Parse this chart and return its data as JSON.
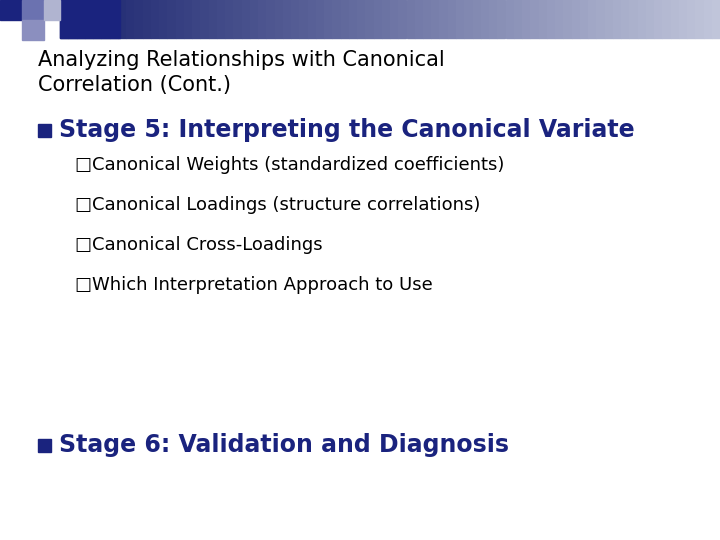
{
  "title_line1": "Analyzing Relationships with Canonical",
  "title_line2": "Correlation (Cont.)",
  "title_fontsize": 15,
  "title_color": "#000000",
  "bullet1_text": "Stage 5: Interpreting the Canonical Variate",
  "bullet1_fontsize": 17,
  "bullet1_color": "#1A237E",
  "bullet_square_color": "#1A237E",
  "subbullets": [
    "□Canonical Weights (standardized coefficients)",
    "□Canonical Loadings (structure correlations)",
    "□Canonical Cross-Loadings",
    "□Which Interpretation Approach to Use"
  ],
  "subbullet_fontsize": 13,
  "subbullet_color": "#000000",
  "bullet2_text": "Stage 6: Validation and Diagnosis",
  "bullet2_fontsize": 17,
  "bullet2_color": "#1A237E",
  "background_color": "#FFFFFF"
}
